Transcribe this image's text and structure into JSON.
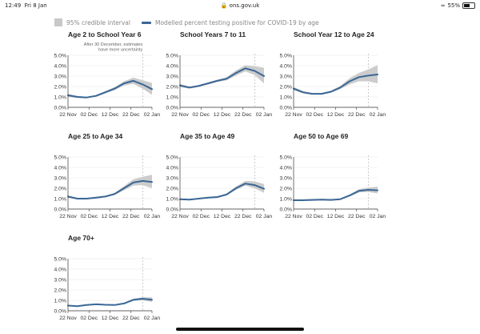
{
  "status": {
    "time": "12:49",
    "date": "Fri 8 Jan",
    "url": "ons.gov.uk",
    "battery": "55%",
    "battery_level": 0.55
  },
  "legend": {
    "band": "95% credible interval",
    "line": "Modelled percent testing positive for COVID-19 by age"
  },
  "colors": {
    "line": "#3a6796",
    "band": "#cccccc",
    "axis": "#333333",
    "gridline": "#e6e6e6",
    "reference": "#aaaaaa"
  },
  "chart_data": [
    {
      "type": "line",
      "title": "Age 2 to School Year 6",
      "annotation": [
        "After 30 December, estimates",
        "have more uncertainty"
      ],
      "xticks": [
        "22 Nov",
        "02 Dec",
        "12 Dec",
        "22 Dec",
        "02 Jan"
      ],
      "x": [
        0,
        5,
        10,
        15,
        20,
        25,
        30,
        35,
        40,
        45
      ],
      "values": [
        1.15,
        1.0,
        0.95,
        1.1,
        1.45,
        1.8,
        2.3,
        2.55,
        2.2,
        1.75
      ],
      "lower": [
        1.0,
        0.9,
        0.88,
        1.02,
        1.35,
        1.65,
        2.1,
        2.25,
        1.8,
        1.2
      ],
      "upper": [
        1.3,
        1.1,
        1.02,
        1.18,
        1.55,
        1.95,
        2.5,
        2.85,
        2.6,
        2.35
      ],
      "ylim": [
        0,
        5
      ],
      "yticks": [
        "0.0%",
        "1.0%",
        "2.0%",
        "3.0%",
        "4.0%",
        "5.0%"
      ]
    },
    {
      "type": "line",
      "title": "School Years 7 to 11",
      "xticks": [
        "22 Nov",
        "02 Dec",
        "12 Dec",
        "22 Dec",
        "02 Jan"
      ],
      "x": [
        0,
        5,
        10,
        15,
        20,
        25,
        30,
        35,
        40,
        45
      ],
      "values": [
        2.1,
        1.9,
        2.05,
        2.3,
        2.55,
        2.75,
        3.3,
        3.75,
        3.5,
        3.0
      ],
      "lower": [
        1.95,
        1.8,
        1.95,
        2.2,
        2.45,
        2.6,
        3.05,
        3.45,
        3.1,
        2.3
      ],
      "upper": [
        2.25,
        2.0,
        2.15,
        2.4,
        2.65,
        2.9,
        3.55,
        4.05,
        3.95,
        3.8
      ],
      "ylim": [
        0,
        5
      ],
      "yticks": [
        "0.0%",
        "1.0%",
        "2.0%",
        "3.0%",
        "4.0%",
        "5.0%"
      ]
    },
    {
      "type": "line",
      "title": "School Year 12 to Age 24",
      "xticks": [
        "22 Nov",
        "02 Dec",
        "12 Dec",
        "22 Dec",
        "02 Jan"
      ],
      "x": [
        0,
        5,
        10,
        15,
        20,
        25,
        30,
        35,
        40,
        45
      ],
      "values": [
        1.8,
        1.45,
        1.3,
        1.3,
        1.5,
        1.9,
        2.5,
        2.9,
        3.05,
        3.15
      ],
      "lower": [
        1.65,
        1.35,
        1.22,
        1.22,
        1.4,
        1.75,
        2.2,
        2.5,
        2.5,
        2.3
      ],
      "upper": [
        1.95,
        1.55,
        1.38,
        1.38,
        1.6,
        2.05,
        2.8,
        3.3,
        3.65,
        4.05
      ],
      "ylim": [
        0,
        5
      ],
      "yticks": [
        "0.0%",
        "1.0%",
        "2.0%",
        "3.0%",
        "4.0%",
        "5.0%"
      ]
    },
    {
      "type": "line",
      "title": "Age 25 to Age 34",
      "xticks": [
        "22 Nov",
        "02 Dec",
        "12 Dec",
        "22 Dec",
        "02 Jan"
      ],
      "x": [
        0,
        5,
        10,
        15,
        20,
        25,
        30,
        35,
        40,
        45
      ],
      "values": [
        1.2,
        1.0,
        1.0,
        1.1,
        1.2,
        1.45,
        2.0,
        2.55,
        2.7,
        2.6
      ],
      "lower": [
        1.1,
        0.92,
        0.93,
        1.02,
        1.12,
        1.35,
        1.8,
        2.25,
        2.3,
        2.0
      ],
      "upper": [
        1.3,
        1.08,
        1.07,
        1.18,
        1.28,
        1.55,
        2.2,
        2.85,
        3.1,
        3.3
      ],
      "ylim": [
        0,
        5
      ],
      "yticks": [
        "0.0%",
        "1.0%",
        "2.0%",
        "3.0%",
        "4.0%",
        "5.0%"
      ]
    },
    {
      "type": "line",
      "title": "Age 35 to Age 49",
      "xticks": [
        "22 Nov",
        "02 Dec",
        "12 Dec",
        "22 Dec",
        "02 Jan"
      ],
      "x": [
        0,
        5,
        10,
        15,
        20,
        25,
        30,
        35,
        40,
        45
      ],
      "values": [
        0.95,
        0.9,
        1.0,
        1.1,
        1.15,
        1.4,
        2.0,
        2.45,
        2.3,
        1.95
      ],
      "lower": [
        0.88,
        0.84,
        0.94,
        1.04,
        1.08,
        1.3,
        1.85,
        2.25,
        2.0,
        1.55
      ],
      "upper": [
        1.02,
        0.96,
        1.06,
        1.16,
        1.22,
        1.5,
        2.15,
        2.7,
        2.65,
        2.4
      ],
      "ylim": [
        0,
        5
      ],
      "yticks": [
        "0.0%",
        "1.0%",
        "2.0%",
        "3.0%",
        "4.0%",
        "5.0%"
      ]
    },
    {
      "type": "line",
      "title": "Age 50 to Age 69",
      "xticks": [
        "22 Nov",
        "02 Dec",
        "12 Dec",
        "22 Dec",
        "02 Jan"
      ],
      "x": [
        0,
        5,
        10,
        15,
        20,
        25,
        30,
        35,
        40,
        45
      ],
      "values": [
        0.85,
        0.85,
        0.88,
        0.9,
        0.88,
        0.95,
        1.3,
        1.75,
        1.85,
        1.8
      ],
      "lower": [
        0.8,
        0.8,
        0.83,
        0.85,
        0.83,
        0.9,
        1.2,
        1.6,
        1.65,
        1.5
      ],
      "upper": [
        0.9,
        0.9,
        0.93,
        0.95,
        0.93,
        1.0,
        1.4,
        1.9,
        2.05,
        2.15
      ],
      "ylim": [
        0,
        5
      ],
      "yticks": [
        "0.0%",
        "1.0%",
        "2.0%",
        "3.0%",
        "4.0%",
        "5.0%"
      ]
    },
    {
      "type": "line",
      "title": "Age 70+",
      "xticks": [
        "22 Nov",
        "02 Dec",
        "12 Dec",
        "22 Dec",
        "02 Jan"
      ],
      "x": [
        0,
        5,
        10,
        15,
        20,
        25,
        30,
        35,
        40,
        45
      ],
      "values": [
        0.5,
        0.45,
        0.55,
        0.62,
        0.58,
        0.55,
        0.7,
        1.05,
        1.15,
        1.05
      ],
      "lower": [
        0.45,
        0.41,
        0.5,
        0.57,
        0.53,
        0.5,
        0.63,
        0.95,
        1.0,
        0.85
      ],
      "upper": [
        0.55,
        0.49,
        0.6,
        0.67,
        0.63,
        0.6,
        0.77,
        1.15,
        1.3,
        1.3
      ],
      "ylim": [
        0,
        5
      ],
      "yticks": [
        "0.0%",
        "1.0%",
        "2.0%",
        "3.0%",
        "4.0%",
        "5.0%"
      ]
    }
  ]
}
